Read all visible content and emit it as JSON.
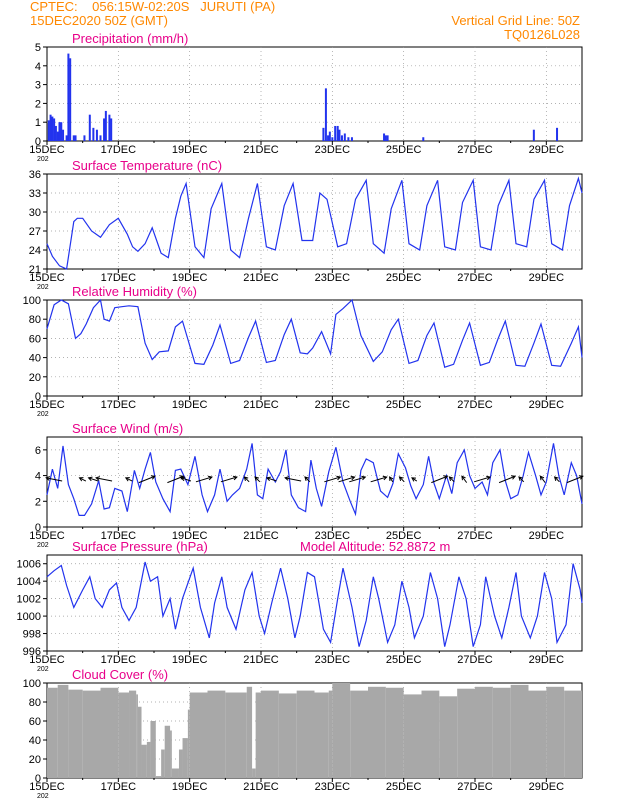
{
  "header": {
    "left_line1": "CPTEC:    056:15W-02:20S   JURUTI (PA)",
    "left_line2": "15DEC2020 50Z (GMT)",
    "right_line1": "Vertical Grid Line: 50Z",
    "right_line2": "TQ0126L028"
  },
  "colors": {
    "header": "#ff8800",
    "panel_title": "#e8008a",
    "series": "#2233ee",
    "cloud": "#a8a8a8",
    "wind_arrow": "#000000"
  },
  "x_axis": {
    "tick_labels": [
      "15DEC",
      "17DEC",
      "19DEC",
      "21DEC",
      "23DEC",
      "25DEC",
      "27DEC",
      "29DEC"
    ],
    "year_label": "202",
    "day_start": 0,
    "day_end": 15
  },
  "chart_data": [
    {
      "type": "bar",
      "title": "Precipitation (mm/h)",
      "ylim": [
        0,
        5
      ],
      "yticks": [
        0,
        1,
        2,
        3,
        4,
        5
      ],
      "series": [
        {
          "name": "precipitation",
          "x": [
            0.05,
            0.1,
            0.15,
            0.2,
            0.25,
            0.3,
            0.35,
            0.4,
            0.45,
            0.55,
            0.6,
            0.65,
            0.75,
            0.8,
            1.05,
            1.2,
            1.3,
            1.4,
            1.5,
            1.6,
            1.65,
            1.75,
            1.8,
            7.75,
            7.82,
            7.88,
            7.93,
            8.0,
            8.08,
            8.15,
            8.2,
            8.27,
            8.35,
            8.45,
            8.55,
            9.45,
            9.5,
            9.55,
            10.55,
            13.65,
            14.3
          ],
          "values": [
            1.1,
            1.4,
            1.3,
            1.2,
            0.8,
            0.5,
            1.0,
            1.0,
            0.6,
            0.3,
            4.65,
            4.4,
            0.3,
            0.3,
            0.3,
            1.4,
            0.7,
            0.6,
            0.3,
            1.2,
            1.6,
            1.4,
            1.2,
            0.7,
            2.8,
            0.3,
            0.5,
            0.2,
            0.8,
            0.8,
            0.6,
            0.3,
            0.4,
            0.2,
            0.2,
            0.4,
            0.3,
            0.3,
            0.2,
            0.6,
            0.7
          ]
        }
      ]
    },
    {
      "type": "line",
      "title": "Surface Temperature (nC)",
      "ylim": [
        21,
        36
      ],
      "yticks": [
        21,
        24,
        27,
        30,
        33,
        36
      ],
      "series": [
        {
          "name": "temperature",
          "x": [
            0,
            0.15,
            0.35,
            0.55,
            0.75,
            0.85,
            1,
            1.25,
            1.5,
            1.75,
            2,
            2.25,
            2.4,
            2.55,
            2.75,
            2.95,
            3.2,
            3.4,
            3.6,
            3.75,
            3.9,
            4.15,
            4.4,
            4.6,
            4.9,
            5.15,
            5.4,
            5.65,
            5.9,
            6.15,
            6.4,
            6.65,
            6.9,
            7.15,
            7.45,
            7.65,
            7.85,
            8.15,
            8.4,
            8.65,
            8.95,
            9.15,
            9.45,
            9.65,
            9.95,
            10.15,
            10.45,
            10.65,
            10.95,
            11.15,
            11.45,
            11.65,
            11.95,
            12.15,
            12.45,
            12.65,
            12.95,
            13.15,
            13.45,
            13.65,
            13.95,
            14.15,
            14.45,
            14.65,
            14.9,
            15
          ],
          "values": [
            25,
            23,
            21.5,
            21,
            28.5,
            29,
            29,
            27,
            26,
            28,
            29,
            26.5,
            24.5,
            23.8,
            25,
            27.5,
            23.5,
            22.8,
            29,
            32.5,
            34.5,
            24.5,
            22.8,
            30.5,
            34.5,
            24,
            22.8,
            29,
            34.5,
            24.5,
            24,
            31,
            34.5,
            25.5,
            25.5,
            33,
            32,
            24.5,
            25,
            32,
            35,
            25,
            23.5,
            30.5,
            35,
            25,
            24,
            31,
            35,
            24.5,
            24,
            31.5,
            35,
            24.5,
            24,
            31,
            35,
            25,
            24.5,
            32,
            35,
            25,
            24,
            31,
            35.3,
            33
          ]
        }
      ]
    },
    {
      "type": "line",
      "title": "Relative Humidity (%)",
      "ylim": [
        0,
        100
      ],
      "yticks": [
        0,
        20,
        40,
        60,
        80,
        100
      ],
      "series": [
        {
          "name": "relative humidity",
          "x": [
            0,
            0.2,
            0.4,
            0.6,
            0.8,
            0.95,
            1.1,
            1.3,
            1.5,
            1.6,
            1.75,
            1.9,
            2.1,
            2.3,
            2.55,
            2.75,
            2.95,
            3.15,
            3.4,
            3.6,
            3.8,
            4.15,
            4.4,
            4.65,
            4.85,
            5.15,
            5.4,
            5.65,
            5.85,
            6.15,
            6.4,
            6.65,
            6.85,
            7.1,
            7.3,
            7.45,
            7.7,
            7.95,
            8.1,
            8.3,
            8.55,
            8.8,
            9.15,
            9.4,
            9.65,
            9.85,
            10.15,
            10.4,
            10.65,
            10.85,
            11.15,
            11.4,
            11.65,
            11.85,
            12.15,
            12.4,
            12.65,
            12.85,
            13.15,
            13.4,
            13.65,
            13.85,
            14.15,
            14.4,
            14.7,
            14.9,
            15
          ],
          "values": [
            70,
            95,
            100,
            96,
            60,
            65,
            75,
            92,
            100,
            80,
            78,
            92,
            93,
            94,
            93,
            55,
            38,
            46,
            47,
            72,
            78,
            34,
            33,
            53,
            74,
            34,
            37,
            61,
            78,
            35,
            37,
            64,
            80,
            45,
            44,
            50,
            67,
            44,
            85,
            91,
            100,
            63,
            36,
            46,
            69,
            80,
            34,
            37,
            63,
            76,
            30,
            33,
            58,
            76,
            32,
            35,
            60,
            78,
            32,
            31,
            55,
            75,
            32,
            31,
            55,
            72,
            40
          ]
        }
      ]
    },
    {
      "type": "line",
      "title": "Surface Wind (m/s)",
      "ylim": [
        0,
        7
      ],
      "yticks": [
        0,
        2,
        4,
        6
      ],
      "series": [
        {
          "name": "wind speed",
          "x": [
            0,
            0.15,
            0.3,
            0.45,
            0.6,
            0.75,
            0.9,
            1.05,
            1.25,
            1.45,
            1.6,
            1.75,
            1.9,
            2.1,
            2.25,
            2.45,
            2.6,
            2.75,
            2.9,
            3.05,
            3.25,
            3.45,
            3.6,
            3.75,
            3.95,
            4.15,
            4.35,
            4.5,
            4.7,
            4.85,
            5.05,
            5.2,
            5.4,
            5.6,
            5.75,
            5.9,
            6.05,
            6.2,
            6.4,
            6.55,
            6.7,
            6.85,
            7.05,
            7.25,
            7.4,
            7.55,
            7.7,
            7.9,
            8.1,
            8.3,
            8.5,
            8.65,
            8.8,
            8.95,
            9.15,
            9.35,
            9.55,
            9.7,
            9.85,
            10.05,
            10.2,
            10.35,
            10.55,
            10.7,
            10.85,
            11,
            11.2,
            11.35,
            11.5,
            11.7,
            11.85,
            12,
            12.2,
            12.35,
            12.5,
            12.7,
            12.85,
            13,
            13.2,
            13.35,
            13.5,
            13.7,
            13.85,
            14,
            14.2,
            14.35,
            14.5,
            14.7,
            14.85,
            15
          ],
          "values": [
            2.5,
            4.5,
            3,
            6.3,
            3.3,
            2.2,
            0.9,
            0.9,
            1.8,
            3.6,
            1.4,
            1.5,
            3,
            2.8,
            1.2,
            4.4,
            3,
            4.5,
            5.8,
            3.5,
            2.2,
            1.2,
            4.4,
            4.5,
            3.3,
            5.5,
            2.5,
            1.2,
            2.5,
            4.5,
            2,
            2.5,
            3,
            4.5,
            6.5,
            2.5,
            2.2,
            4.5,
            3.5,
            4.3,
            6,
            2.5,
            1.5,
            1.2,
            5.2,
            3,
            1.6,
            4.3,
            6.2,
            3.5,
            2,
            1,
            4.4,
            5.3,
            5,
            2.8,
            2.3,
            3.4,
            5.7,
            4.6,
            3.2,
            2.2,
            3.3,
            5.5,
            3.4,
            2.2,
            4,
            2.6,
            5,
            6,
            4,
            3,
            3.5,
            2.5,
            5,
            6,
            3.6,
            2.2,
            2.5,
            4,
            5.8,
            4,
            2.5,
            3.5,
            6.5,
            4,
            2.5,
            5,
            4,
            1.8
          ]
        }
      ],
      "wind_vectors": {
        "x": [
          0.2,
          1.0,
          1.3,
          1.6,
          2.3,
          2.8,
          3.6,
          3.9,
          4.4,
          5.1,
          5.6,
          5.9,
          6.3,
          6.9,
          7.3,
          8.0,
          8.4,
          8.7,
          9.3,
          9.65,
          9.95,
          10.3,
          11.0,
          11.35,
          11.7,
          12.2,
          12.9,
          13.3,
          13.9,
          14.3,
          14.8
        ],
        "u": [
          -1,
          -0.4,
          -0.6,
          -1,
          -0.4,
          1,
          1,
          -0.6,
          1,
          1,
          -0.3,
          -0.3,
          -0.6,
          -1,
          -0.3,
          1,
          1,
          1,
          1,
          -0.2,
          -0.3,
          -0.3,
          1,
          -0.3,
          -0.3,
          1,
          1,
          -0.3,
          -0.3,
          -0.3,
          1
        ],
        "v": [
          0.2,
          0.2,
          0.2,
          0.2,
          0.2,
          0.4,
          0.4,
          0.2,
          0.3,
          0.3,
          0.3,
          0.3,
          0.2,
          0.2,
          0.3,
          0.3,
          0.3,
          0.3,
          0.3,
          0.3,
          0.3,
          0.2,
          0.4,
          0.3,
          0.4,
          0.3,
          0.4,
          0.3,
          0.4,
          0.3,
          0.4
        ]
      }
    },
    {
      "type": "line",
      "title": "Surface Pressure (hPa)",
      "annotation": "Model Altitude: 52.8872  m",
      "ylim": [
        996,
        1007
      ],
      "yticks": [
        996,
        998,
        1000,
        1002,
        1004,
        1006
      ],
      "series": [
        {
          "name": "pressure",
          "x": [
            0,
            0.2,
            0.4,
            0.55,
            0.75,
            1,
            1.2,
            1.35,
            1.55,
            1.75,
            1.95,
            2.1,
            2.3,
            2.5,
            2.75,
            2.9,
            3.1,
            3.25,
            3.45,
            3.6,
            3.8,
            4.1,
            4.3,
            4.55,
            4.7,
            4.9,
            5.05,
            5.3,
            5.55,
            5.75,
            5.95,
            6.1,
            6.3,
            6.55,
            6.75,
            6.95,
            7.1,
            7.3,
            7.5,
            7.75,
            7.95,
            8.15,
            8.3,
            8.55,
            8.75,
            8.95,
            9.15,
            9.3,
            9.55,
            9.75,
            9.95,
            10.15,
            10.3,
            10.55,
            10.75,
            10.95,
            11.15,
            11.3,
            11.55,
            11.75,
            11.95,
            12.15,
            12.3,
            12.55,
            12.75,
            12.95,
            13.15,
            13.3,
            13.55,
            13.75,
            13.95,
            14.15,
            14.3,
            14.55,
            14.75,
            14.95,
            15
          ],
          "values": [
            1004.5,
            1005.2,
            1005.8,
            1003.5,
            1001,
            1003,
            1004.5,
            1002,
            1001,
            1003,
            1003.8,
            1001,
            999.5,
            1001,
            1006.2,
            1004,
            1004.5,
            1000,
            1002,
            998.5,
            1002,
            1005.5,
            1001,
            997.5,
            1001.5,
            1004.5,
            1001,
            998.5,
            1003,
            1005,
            1000,
            998,
            1001.5,
            1005.5,
            1002,
            997.5,
            1000,
            1005,
            1004.5,
            998.5,
            997,
            1002,
            1005.5,
            1001,
            996.5,
            999.5,
            1004.5,
            1002,
            997,
            999,
            1004,
            1001,
            997.5,
            1000,
            1005,
            1002,
            996.5,
            999,
            1004.5,
            1002,
            996.5,
            999,
            1004.5,
            1000,
            997.5,
            1001,
            1005,
            1000,
            997.5,
            1000,
            1005,
            1002,
            997,
            999,
            1006,
            1003,
            1001.5
          ]
        }
      ]
    },
    {
      "type": "area",
      "title": "Cloud Cover (%)",
      "ylim": [
        0,
        100
      ],
      "yticks": [
        0,
        20,
        40,
        60,
        80,
        100
      ],
      "series": [
        {
          "name": "cloud cover",
          "x": [
            0,
            0.3,
            0.6,
            1,
            1.5,
            2,
            2.3,
            2.5,
            2.55,
            2.65,
            2.8,
            2.9,
            3.05,
            3.2,
            3.3,
            3.45,
            3.5,
            3.7,
            3.8,
            3.95,
            4,
            4.5,
            5,
            5.6,
            5.75,
            5.85,
            6,
            6.5,
            7,
            7.5,
            7.9,
            8,
            8.5,
            9,
            9.5,
            10,
            10.5,
            11,
            11.5,
            12,
            12.5,
            13,
            13.5,
            14,
            14.5,
            15
          ],
          "values": [
            95,
            98,
            93,
            92,
            95,
            90,
            92,
            88,
            75,
            35,
            38,
            60,
            2,
            30,
            55,
            50,
            10,
            30,
            42,
            72,
            90,
            92,
            90,
            96,
            10,
            90,
            92,
            89,
            92,
            90,
            92,
            100,
            92,
            96,
            95,
            88,
            92,
            86,
            94,
            96,
            95,
            98,
            92,
            96,
            92,
            94
          ]
        }
      ]
    }
  ]
}
